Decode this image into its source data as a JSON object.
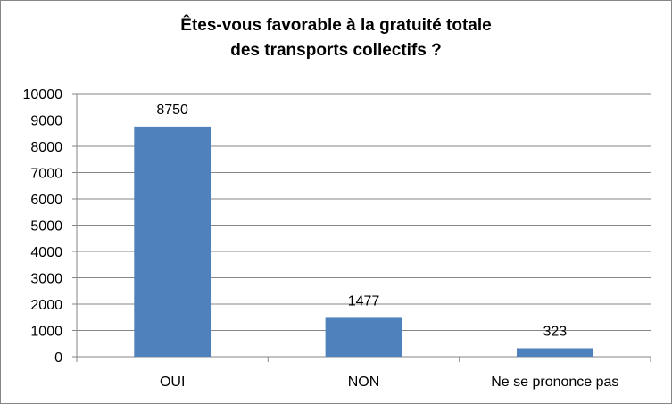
{
  "chart_data": {
    "type": "bar",
    "title_lines": [
      "Êtes-vous favorable à la gratuité totale",
      "des transports collectifs ?"
    ],
    "categories": [
      "OUI",
      "NON",
      "Ne se prononce pas"
    ],
    "values": [
      8750,
      1477,
      323
    ],
    "data_labels": [
      "8750",
      "1477",
      "323"
    ],
    "ylim": [
      0,
      10000
    ],
    "y_ticks": [
      0,
      1000,
      2000,
      3000,
      4000,
      5000,
      6000,
      7000,
      8000,
      9000,
      10000
    ],
    "xlabel": "",
    "ylabel": "",
    "grid": true,
    "legend": "none",
    "bar_color": "#4F81BD",
    "grid_color": "#868686"
  }
}
